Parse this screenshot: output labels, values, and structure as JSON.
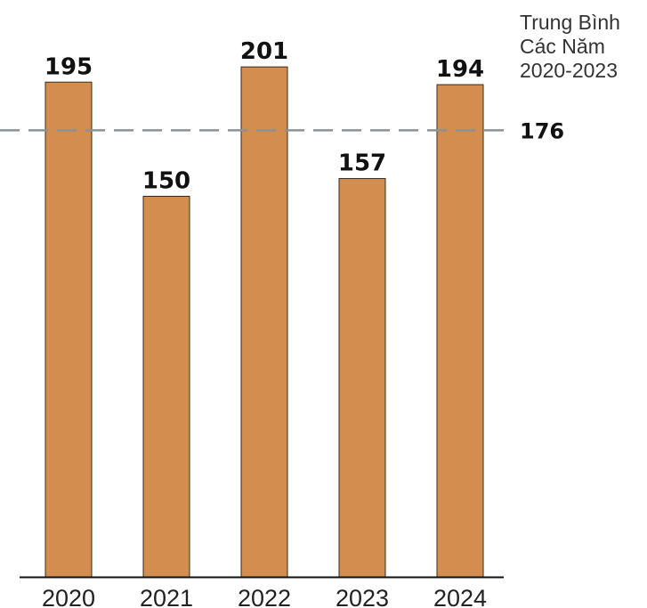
{
  "chart_data": {
    "type": "bar",
    "title": "",
    "xlabel": "",
    "ylabel": "",
    "categories": [
      "2020",
      "2021",
      "2022",
      "2023",
      "2024"
    ],
    "values": [
      195,
      150,
      201,
      157,
      194
    ],
    "value_labels": [
      "195",
      "150",
      "201",
      "157",
      "194"
    ],
    "ylim": [
      0,
      215
    ],
    "grid": false,
    "bar_color": "#D38D4F",
    "bar_edge_color": "#3a2a1a",
    "reference_line": {
      "value": 176,
      "value_label": "176",
      "label_lines": [
        "Trung Bình",
        "Các Năm",
        "2020-2023"
      ],
      "color": "#8A9296",
      "style": "dashed"
    }
  }
}
